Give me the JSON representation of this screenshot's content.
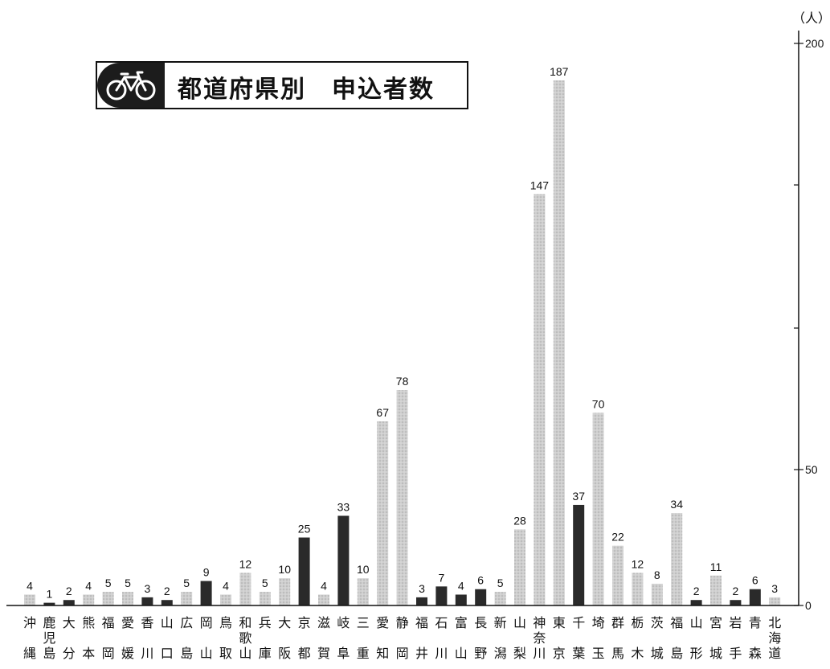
{
  "title": "都道府県別　申込者数",
  "colors": {
    "light_bar": "#c8c8c8",
    "dark_bar": "#2a2a2a",
    "axis": "#111111"
  },
  "chart_data": {
    "type": "bar",
    "title": "都道府県別　申込者数",
    "ylabel": "（人）",
    "ylim": [
      0,
      200
    ],
    "yticks": [
      0,
      50,
      200
    ],
    "y_axis_side": "right",
    "categories": [
      "沖縄",
      "鹿児島",
      "大分",
      "熊本",
      "福岡",
      "愛媛",
      "香川",
      "山口",
      "広島",
      "岡山",
      "鳥取",
      "和歌山",
      "兵庫",
      "大阪",
      "京都",
      "滋賀",
      "岐阜",
      "三重",
      "愛知",
      "静岡",
      "福井",
      "石川",
      "富山",
      "長野",
      "新潟",
      "山梨",
      "神奈川",
      "東京",
      "千葉",
      "埼玉",
      "群馬",
      "栃木",
      "茨城",
      "福島",
      "山形",
      "宮城",
      "岩手",
      "青森",
      "北海道"
    ],
    "values": [
      4,
      1,
      2,
      4,
      5,
      5,
      3,
      2,
      5,
      9,
      4,
      12,
      5,
      10,
      25,
      4,
      33,
      10,
      67,
      78,
      3,
      7,
      4,
      6,
      5,
      28,
      147,
      187,
      37,
      70,
      22,
      12,
      8,
      34,
      2,
      11,
      2,
      6,
      3
    ],
    "shade": [
      "light",
      "dark",
      "dark",
      "light",
      "light",
      "light",
      "dark",
      "dark",
      "light",
      "dark",
      "light",
      "light",
      "light",
      "light",
      "dark",
      "light",
      "dark",
      "light",
      "light",
      "light",
      "dark",
      "dark",
      "dark",
      "dark",
      "light",
      "light",
      "light",
      "light",
      "dark",
      "light",
      "light",
      "light",
      "light",
      "light",
      "dark",
      "light",
      "dark",
      "dark",
      "light"
    ]
  }
}
